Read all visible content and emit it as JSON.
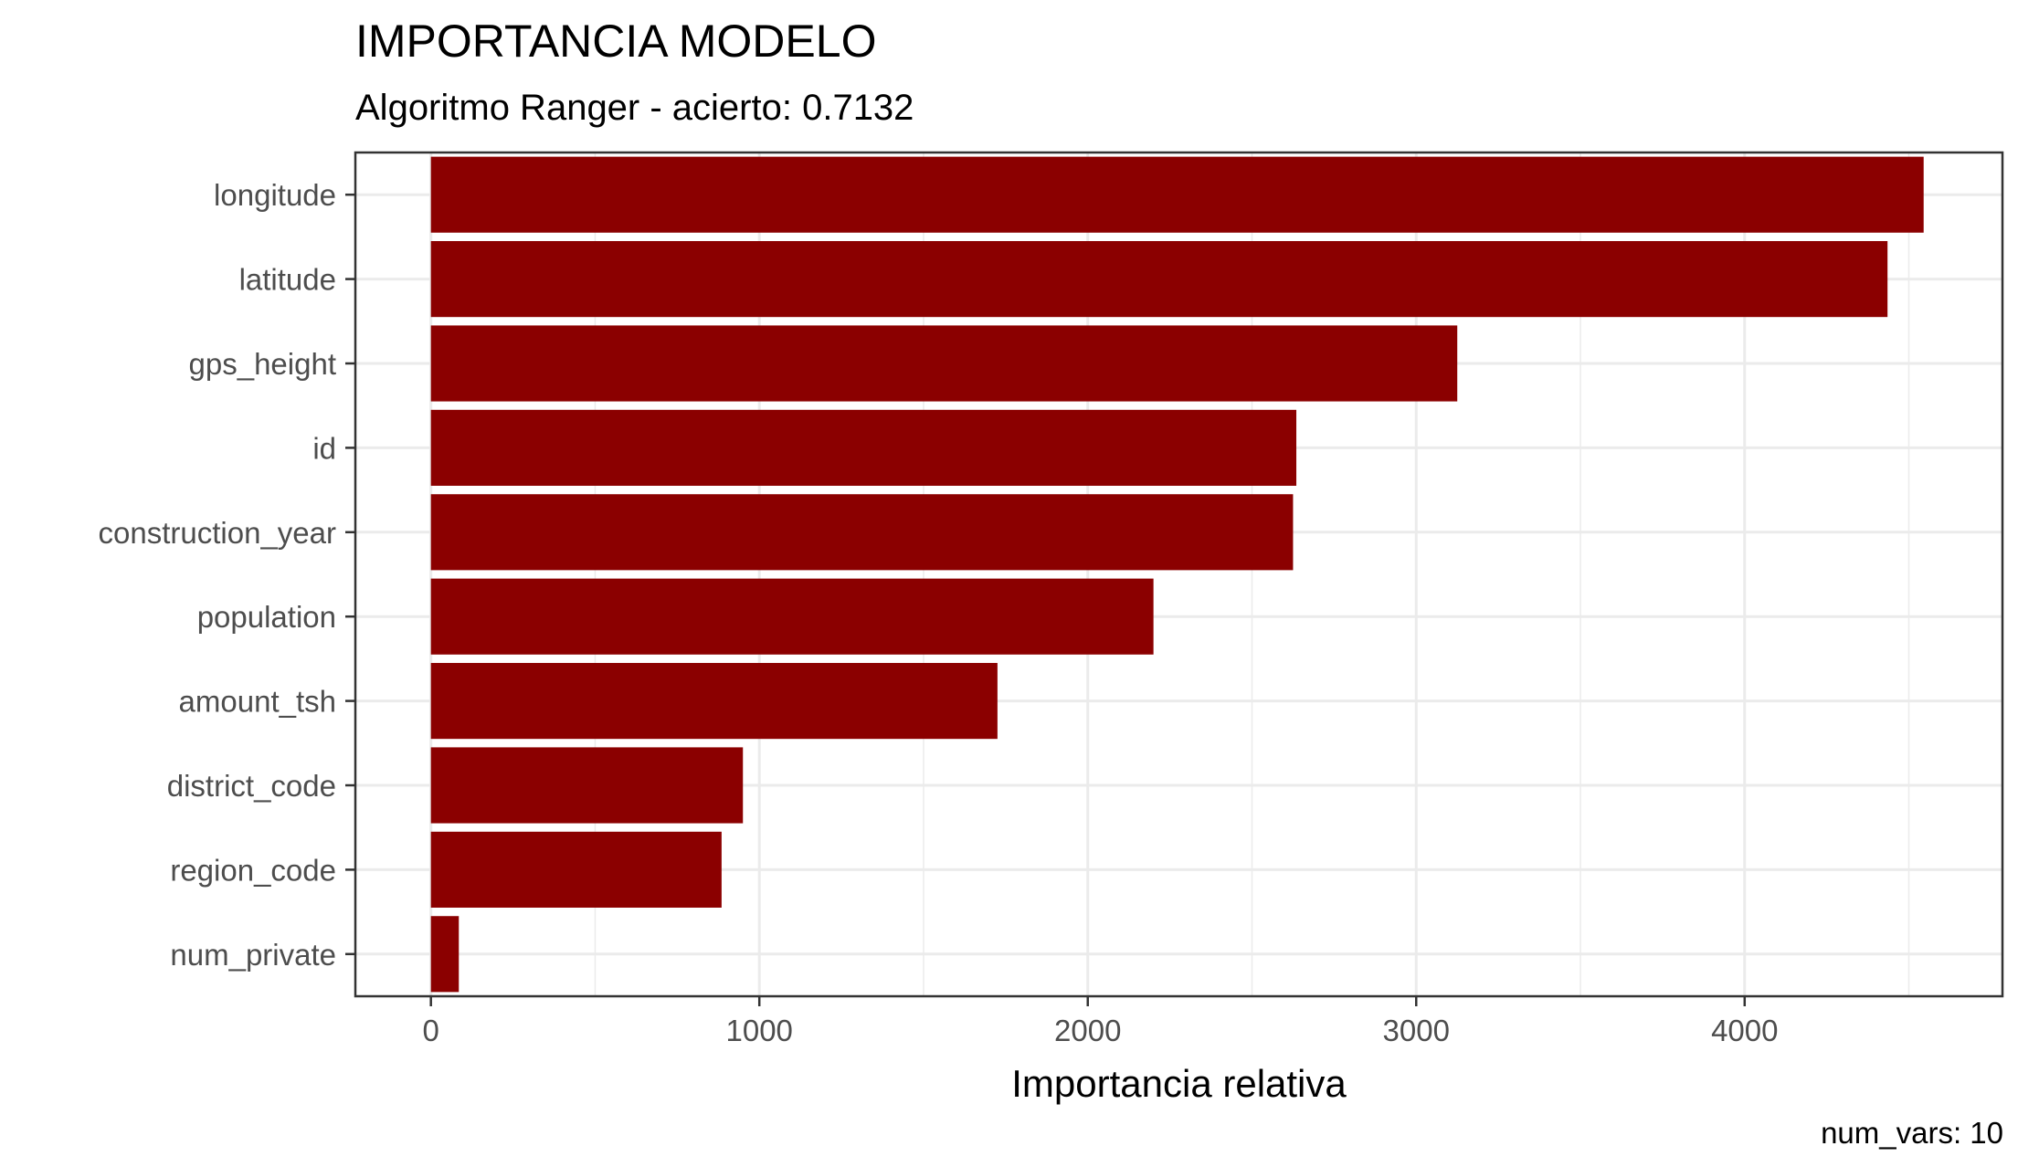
{
  "chart_data": {
    "type": "bar",
    "orientation": "horizontal",
    "title": "IMPORTANCIA MODELO",
    "subtitle": "Algoritmo Ranger - acierto: 0.7132",
    "xlabel": "Importancia relativa",
    "ylabel": "",
    "caption": "num_vars: 10",
    "categories": [
      "longitude",
      "latitude",
      "gps_height",
      "id",
      "construction_year",
      "population",
      "amount_tsh",
      "district_code",
      "region_code",
      "num_private"
    ],
    "values": [
      4545,
      4435,
      3125,
      2635,
      2625,
      2200,
      1725,
      950,
      885,
      85
    ],
    "xlim": [
      -230,
      4785
    ],
    "xticks": [
      0,
      1000,
      2000,
      3000,
      4000
    ],
    "x_minor_ticks": [
      500,
      1500,
      2500,
      3500,
      4500
    ],
    "bar_color": "#8B0000",
    "grid": true,
    "legend": "none"
  }
}
